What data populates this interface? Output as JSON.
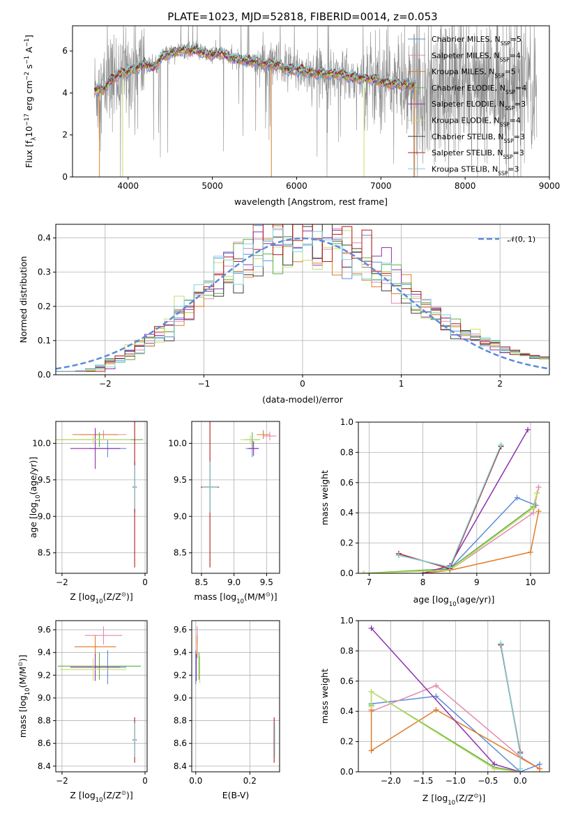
{
  "title": "PLATE=1023, MJD=52818, FIBERID=0014, z=0.053",
  "colors": {
    "chabrier_miles": "#5b8bd9",
    "salpeter_miles": "#e08ab0",
    "kroupa_miles": "#e07b27",
    "chabrier_elodie": "#5fae3e",
    "salpeter_elodie": "#8e30ae",
    "kroupa_elodie": "#c2e06a",
    "chabrier_stelib": "#404040",
    "salpeter_stelib": "#b51a1a",
    "kroupa_stelib": "#7ed1d8",
    "data": "#8c8c8c"
  },
  "chart_data": [
    {
      "id": "spectrum",
      "type": "line",
      "xlabel": "wavelength [Angstrom, rest frame]",
      "ylabel_parts": [
        "Flux [f",
        "λ",
        "10",
        "−17",
        " erg cm",
        "−2",
        " s",
        "−1",
        " A",
        "−1",
        "]"
      ],
      "xlim": [
        3340,
        9000
      ],
      "ylim": [
        0,
        7.2
      ],
      "xticks": [
        "4000",
        "5000",
        "6000",
        "7000",
        "8000",
        "9000"
      ],
      "yticks": [
        "0",
        "2",
        "4",
        "6"
      ],
      "legend_position": "top-right",
      "series": [
        {
          "name": "Chabrier MILES",
          "nssp": "5",
          "color_key": "chabrier_miles"
        },
        {
          "name": "Salpeter MILES",
          "nssp": "4",
          "color_key": "salpeter_miles"
        },
        {
          "name": "Kroupa MILES",
          "nssp": "5",
          "color_key": "kroupa_miles"
        },
        {
          "name": "Chabrier ELODIE",
          "nssp": "4",
          "color_key": "chabrier_elodie"
        },
        {
          "name": "Salpeter ELODIE",
          "nssp": "3",
          "color_key": "salpeter_elodie"
        },
        {
          "name": "Kroupa ELODIE",
          "nssp": "4",
          "color_key": "kroupa_elodie"
        },
        {
          "name": "Chabrier STELIB",
          "nssp": "3",
          "color_key": "chabrier_stelib"
        },
        {
          "name": "Salpeter STELIB",
          "nssp": "3",
          "color_key": "salpeter_stelib"
        },
        {
          "name": "Kroupa STELIB",
          "nssp": "3",
          "color_key": "kroupa_stelib"
        }
      ],
      "model_continuum": [
        [
          3600,
          4.1
        ],
        [
          3700,
          4.15
        ],
        [
          3800,
          4.6
        ],
        [
          3900,
          4.9
        ],
        [
          4000,
          5.0
        ],
        [
          4100,
          5.2
        ],
        [
          4200,
          5.4
        ],
        [
          4300,
          5.2
        ],
        [
          4400,
          5.7
        ],
        [
          4500,
          5.9
        ],
        [
          4600,
          6.0
        ],
        [
          4700,
          6.05
        ],
        [
          4800,
          6.0
        ],
        [
          4900,
          5.9
        ],
        [
          5000,
          5.8
        ],
        [
          5100,
          5.9
        ],
        [
          5200,
          5.7
        ],
        [
          5300,
          5.6
        ],
        [
          5400,
          5.55
        ],
        [
          5500,
          5.5
        ],
        [
          5600,
          5.4
        ],
        [
          5700,
          5.35
        ],
        [
          5800,
          5.3
        ],
        [
          5900,
          5.1
        ],
        [
          6000,
          5.1
        ],
        [
          6100,
          5.05
        ],
        [
          6200,
          4.95
        ],
        [
          6300,
          4.95
        ],
        [
          6400,
          4.9
        ],
        [
          6500,
          4.9
        ],
        [
          6600,
          4.8
        ],
        [
          6700,
          4.75
        ],
        [
          6800,
          4.7
        ],
        [
          6900,
          4.65
        ],
        [
          7000,
          4.55
        ],
        [
          7100,
          4.45
        ],
        [
          7200,
          4.45
        ],
        [
          7300,
          4.4
        ],
        [
          7400,
          4.4
        ]
      ]
    },
    {
      "id": "residuals",
      "type": "histogram",
      "xlabel": "(data-model)/error",
      "ylabel": "Normed distribution",
      "xlim": [
        -2.5,
        2.5
      ],
      "ylim": [
        0,
        0.44
      ],
      "xticks": [
        "−2",
        "−1",
        "0",
        "1",
        "2"
      ],
      "yticks": [
        "0.0",
        "0.1",
        "0.2",
        "0.3",
        "0.4"
      ],
      "grid": true,
      "legend_position": "top-right",
      "legend_label": "𝒩(0, 1)",
      "bin_width": 0.1
    },
    {
      "id": "age_vs_Z",
      "type": "errorbar",
      "xlabel_parts": [
        "Z [log",
        "10",
        "(Z/Z",
        "⊙",
        ")]"
      ],
      "ylabel_parts": [
        "age  [log",
        "10",
        "(age/yr)]"
      ],
      "xlim": [
        -2.15,
        0.05
      ],
      "ylim": [
        8.22,
        10.3
      ],
      "xticks": [
        "−2",
        "0"
      ],
      "yticks": [
        "8.5",
        "9.0",
        "9.5",
        "10.0"
      ],
      "grid": true,
      "points": [
        {
          "c": "chabrier_miles",
          "x": -0.9,
          "y": 9.93,
          "xe": 0.45,
          "ye": 0.12
        },
        {
          "c": "salpeter_miles",
          "x": -1.0,
          "y": 10.12,
          "xe": 0.55,
          "ye": 0.06
        },
        {
          "c": "kroupa_miles",
          "x": -1.2,
          "y": 10.12,
          "xe": 0.55,
          "ye": 0.06
        },
        {
          "c": "chabrier_elodie",
          "x": -1.1,
          "y": 10.05,
          "xe": 1.05,
          "ye": 0.1
        },
        {
          "c": "salpeter_elodie",
          "x": -1.2,
          "y": 9.93,
          "xe": 0.6,
          "ye": 0.28
        },
        {
          "c": "kroupa_elodie",
          "x": -1.25,
          "y": 10.05,
          "xe": 0.9,
          "ye": 0.06
        },
        {
          "c": "chabrier_stelib",
          "x": -0.25,
          "y": 9.4,
          "xe": 0.05,
          "ye": 0.35
        },
        {
          "c": "salpeter_stelib",
          "x": -0.25,
          "y": 9.4,
          "xe": 0.05,
          "ye": 1.1
        },
        {
          "c": "kroupa_stelib",
          "x": -0.25,
          "y": 9.4,
          "xe": 0.04,
          "ye": 0.3
        }
      ]
    },
    {
      "id": "age_vs_mass",
      "type": "errorbar",
      "xlabel_parts": [
        "mass [log",
        "10",
        "(M/M",
        "⊙",
        ")]"
      ],
      "xlim": [
        8.35,
        9.7
      ],
      "ylim": [
        8.22,
        10.3
      ],
      "xticks": [
        "8.5",
        "9.0",
        "9.5"
      ],
      "yticks": [
        "8.5",
        "9.0",
        "9.5",
        "10.0"
      ],
      "grid": true,
      "points": [
        {
          "c": "chabrier_miles",
          "x": 9.28,
          "y": 9.93,
          "xe": 0.1,
          "ye": 0.12
        },
        {
          "c": "salpeter_miles",
          "x": 9.55,
          "y": 10.1,
          "xe": 0.1,
          "ye": 0.06
        },
        {
          "c": "kroupa_miles",
          "x": 9.45,
          "y": 10.12,
          "xe": 0.1,
          "ye": 0.06
        },
        {
          "c": "chabrier_elodie",
          "x": 9.28,
          "y": 10.05,
          "xe": 0.12,
          "ye": 0.1
        },
        {
          "c": "salpeter_elodie",
          "x": 9.3,
          "y": 9.93,
          "xe": 0.08,
          "ye": 0.1
        },
        {
          "c": "kroupa_elodie",
          "x": 9.25,
          "y": 10.05,
          "xe": 0.15,
          "ye": 0.06
        },
        {
          "c": "chabrier_stelib",
          "x": 8.63,
          "y": 9.4,
          "xe": 0.12,
          "ye": 0.35
        },
        {
          "c": "salpeter_stelib",
          "x": 8.63,
          "y": 9.4,
          "xe": 0.14,
          "ye": 1.1
        },
        {
          "c": "kroupa_stelib",
          "x": 8.63,
          "y": 9.4,
          "xe": 0.12,
          "ye": 0.35
        }
      ]
    },
    {
      "id": "weight_vs_age",
      "type": "line",
      "xlabel_parts": [
        "age  [log",
        "10",
        "(age/yr)]"
      ],
      "ylabel": "mass weight",
      "xlim": [
        6.8,
        10.35
      ],
      "ylim": [
        0,
        1.0
      ],
      "xticks": [
        "7",
        "8",
        "9",
        "10"
      ],
      "yticks": [
        "0.0",
        "0.2",
        "0.4",
        "0.6",
        "0.8",
        "1.0"
      ],
      "grid": true,
      "series": [
        {
          "c": "chabrier_miles",
          "pts": [
            [
              8.0,
              0.0
            ],
            [
              8.5,
              0.03
            ],
            [
              9.75,
              0.5
            ],
            [
              10.1,
              0.45
            ]
          ]
        },
        {
          "c": "salpeter_miles",
          "pts": [
            [
              8.0,
              0.0
            ],
            [
              8.5,
              0.02
            ],
            [
              10.05,
              0.4
            ],
            [
              10.15,
              0.57
            ]
          ]
        },
        {
          "c": "kroupa_miles",
          "pts": [
            [
              8.0,
              0.0
            ],
            [
              8.5,
              0.02
            ],
            [
              10.0,
              0.14
            ],
            [
              10.15,
              0.41
            ]
          ]
        },
        {
          "c": "chabrier_elodie",
          "pts": [
            [
              6.9,
              0.0
            ],
            [
              8.5,
              0.03
            ],
            [
              10.05,
              0.44
            ],
            [
              10.12,
              0.53
            ]
          ]
        },
        {
          "c": "salpeter_elodie",
          "pts": [
            [
              8.0,
              0.0
            ],
            [
              8.5,
              0.05
            ],
            [
              9.95,
              0.95
            ]
          ]
        },
        {
          "c": "kroupa_elodie",
          "pts": [
            [
              6.9,
              0.0
            ],
            [
              8.5,
              0.02
            ],
            [
              10.05,
              0.43
            ],
            [
              10.12,
              0.53
            ]
          ]
        },
        {
          "c": "chabrier_stelib",
          "pts": [
            [
              7.55,
              0.12
            ],
            [
              8.5,
              0.04
            ],
            [
              9.45,
              0.84
            ]
          ]
        },
        {
          "c": "salpeter_stelib",
          "pts": [
            [
              7.55,
              0.13
            ],
            [
              8.5,
              0.03
            ],
            [
              9.45,
              0.84
            ]
          ]
        },
        {
          "c": "kroupa_stelib",
          "pts": [
            [
              7.55,
              0.12
            ],
            [
              8.5,
              0.04
            ],
            [
              9.45,
              0.85
            ]
          ]
        }
      ]
    },
    {
      "id": "mass_vs_Z",
      "type": "errorbar",
      "xlabel_parts": [
        "Z [log",
        "10",
        "(Z/Z",
        "⊙",
        ")]"
      ],
      "ylabel_parts": [
        "mass [log",
        "10",
        "(M/M",
        "⊙",
        ")]"
      ],
      "xlim": [
        -2.15,
        0.05
      ],
      "ylim": [
        8.35,
        9.68
      ],
      "xticks": [
        "−2",
        "0"
      ],
      "yticks": [
        "8.4",
        "8.6",
        "8.8",
        "9.0",
        "9.2",
        "9.4",
        "9.6"
      ],
      "grid": true,
      "points": [
        {
          "c": "chabrier_miles",
          "x": -0.9,
          "y": 9.27,
          "xe": 0.45,
          "ye": 0.15
        },
        {
          "c": "salpeter_miles",
          "x": -1.0,
          "y": 9.55,
          "xe": 0.45,
          "ye": 0.08
        },
        {
          "c": "kroupa_miles",
          "x": -1.2,
          "y": 9.45,
          "xe": 0.5,
          "ye": 0.1
        },
        {
          "c": "chabrier_elodie",
          "x": -1.1,
          "y": 9.28,
          "xe": 1.0,
          "ye": 0.12
        },
        {
          "c": "salpeter_elodie",
          "x": -1.2,
          "y": 9.27,
          "xe": 0.6,
          "ye": 0.12
        },
        {
          "c": "kroupa_elodie",
          "x": -1.25,
          "y": 9.25,
          "xe": 0.8,
          "ye": 0.1
        },
        {
          "c": "chabrier_stelib",
          "x": -0.25,
          "y": 8.63,
          "xe": 0.05,
          "ye": 0.15
        },
        {
          "c": "salpeter_stelib",
          "x": -0.25,
          "y": 8.63,
          "xe": 0.05,
          "ye": 0.2
        },
        {
          "c": "kroupa_stelib",
          "x": -0.25,
          "y": 8.63,
          "xe": 0.04,
          "ye": 0.15
        }
      ]
    },
    {
      "id": "mass_vs_EBV",
      "type": "errorbar",
      "xlabel": "E(B-V)",
      "xlim": [
        -0.015,
        0.31
      ],
      "ylim": [
        8.35,
        9.68
      ],
      "xticks": [
        "0.0",
        "0.2"
      ],
      "yticks": [
        "8.4",
        "8.6",
        "8.8",
        "9.0",
        "9.2",
        "9.4",
        "9.6"
      ],
      "grid": true,
      "points": [
        {
          "c": "chabrier_miles",
          "x": 0.0,
          "y": 9.27,
          "xe": 0.0,
          "ye": 0.15
        },
        {
          "c": "salpeter_miles",
          "x": 0.005,
          "y": 9.55,
          "xe": 0.0,
          "ye": 0.08
        },
        {
          "c": "kroupa_miles",
          "x": 0.005,
          "y": 9.45,
          "xe": 0.0,
          "ye": 0.1
        },
        {
          "c": "chabrier_elodie",
          "x": 0.012,
          "y": 9.28,
          "xe": 0.0,
          "ye": 0.12
        },
        {
          "c": "salpeter_elodie",
          "x": 0.002,
          "y": 9.27,
          "xe": 0.0,
          "ye": 0.12
        },
        {
          "c": "kroupa_elodie",
          "x": 0.015,
          "y": 9.25,
          "xe": 0.0,
          "ye": 0.12
        },
        {
          "c": "chabrier_stelib",
          "x": 0.29,
          "y": 8.63,
          "xe": 0.0,
          "ye": 0.15
        },
        {
          "c": "salpeter_stelib",
          "x": 0.29,
          "y": 8.63,
          "xe": 0.0,
          "ye": 0.2
        },
        {
          "c": "kroupa_stelib",
          "x": 0.292,
          "y": 8.63,
          "xe": 0.0,
          "ye": 0.15
        }
      ]
    },
    {
      "id": "weight_vs_Z",
      "type": "line",
      "xlabel_parts": [
        "Z [log",
        "10",
        "(Z/Z",
        "⊙",
        ")]"
      ],
      "ylabel": "mass weight",
      "xlim": [
        -2.5,
        0.45
      ],
      "ylim": [
        0,
        1.0
      ],
      "xticks": [
        "−2.0",
        "−1.5",
        "−1.0",
        "−0.5",
        "0.0"
      ],
      "yticks": [
        "0.0",
        "0.2",
        "0.4",
        "0.6",
        "0.8",
        "1.0"
      ],
      "grid": true,
      "series": [
        {
          "c": "chabrier_miles",
          "pts": [
            [
              -2.3,
              0.45
            ],
            [
              -1.3,
              0.5
            ],
            [
              0.0,
              0.0
            ],
            [
              0.3,
              0.05
            ]
          ]
        },
        {
          "c": "salpeter_miles",
          "pts": [
            [
              -2.3,
              0.4
            ],
            [
              -1.3,
              0.57
            ],
            [
              0.0,
              0.1
            ],
            [
              0.3,
              0.02
            ]
          ]
        },
        {
          "c": "kroupa_miles",
          "pts": [
            [
              -2.3,
              0.41
            ],
            [
              -2.3,
              0.14
            ],
            [
              -1.3,
              0.41
            ],
            [
              0.3,
              0.02
            ]
          ]
        },
        {
          "c": "chabrier_elodie",
          "pts": [
            [
              -2.3,
              0.44
            ],
            [
              -2.3,
              0.53
            ],
            [
              -0.4,
              0.03
            ],
            [
              0.0,
              0.0
            ]
          ]
        },
        {
          "c": "salpeter_elodie",
          "pts": [
            [
              -2.3,
              0.95
            ],
            [
              -0.4,
              0.05
            ],
            [
              0.0,
              0.0
            ]
          ]
        },
        {
          "c": "kroupa_elodie",
          "pts": [
            [
              -2.3,
              0.43
            ],
            [
              -2.3,
              0.53
            ],
            [
              -0.4,
              0.02
            ],
            [
              0.0,
              0.0
            ]
          ]
        },
        {
          "c": "chabrier_stelib",
          "pts": [
            [
              -0.3,
              0.84
            ],
            [
              0.0,
              0.12
            ]
          ]
        },
        {
          "c": "salpeter_stelib",
          "pts": [
            [
              -0.3,
              0.84
            ],
            [
              0.0,
              0.13
            ]
          ]
        },
        {
          "c": "kroupa_stelib",
          "pts": [
            [
              -0.3,
              0.85
            ],
            [
              0.0,
              0.12
            ],
            [
              0.0,
              0.02
            ]
          ]
        }
      ]
    }
  ]
}
